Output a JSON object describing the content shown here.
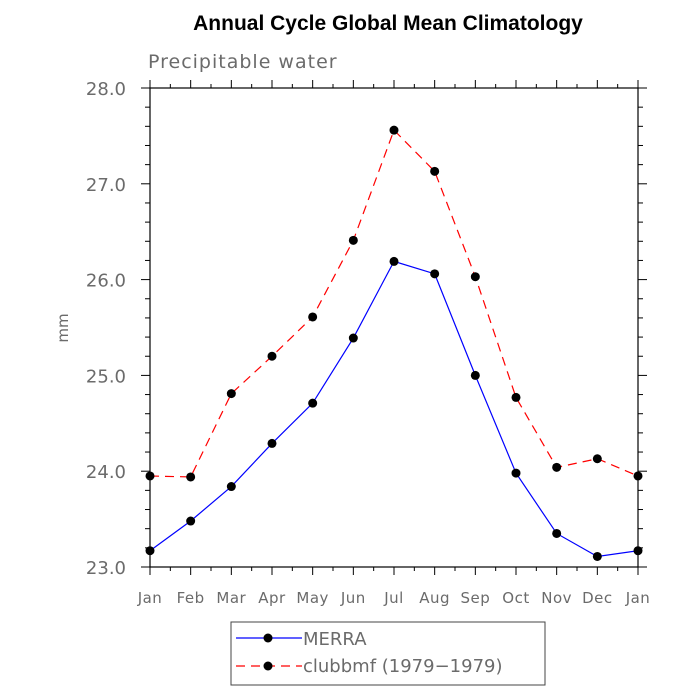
{
  "chart_data": {
    "type": "line",
    "title": "Annual Cycle Global Mean Climatology",
    "subtitle": "Precipitable water",
    "xlabel": "",
    "ylabel": "mm",
    "categories": [
      "Jan",
      "Feb",
      "Mar",
      "Apr",
      "May",
      "Jun",
      "Jul",
      "Aug",
      "Sep",
      "Oct",
      "Nov",
      "Dec",
      "Jan"
    ],
    "ylim": [
      23.0,
      28.0
    ],
    "yticks": [
      "23.0",
      "24.0",
      "25.0",
      "26.0",
      "27.0",
      "28.0"
    ],
    "grid": false,
    "legend_position": "bottom",
    "series": [
      {
        "name": "MERRA",
        "color": "#0000ff",
        "dash": "solid",
        "values": [
          23.17,
          23.48,
          23.84,
          24.29,
          24.71,
          25.39,
          26.19,
          26.06,
          25.0,
          23.98,
          23.35,
          23.11,
          23.17
        ]
      },
      {
        "name": "clubbmf (1979−1979)",
        "color": "#ff0000",
        "dash": "dashed",
        "values": [
          23.95,
          23.94,
          24.81,
          25.2,
          25.61,
          26.41,
          27.56,
          27.13,
          26.03,
          24.77,
          24.04,
          24.13,
          23.95
        ]
      }
    ]
  }
}
